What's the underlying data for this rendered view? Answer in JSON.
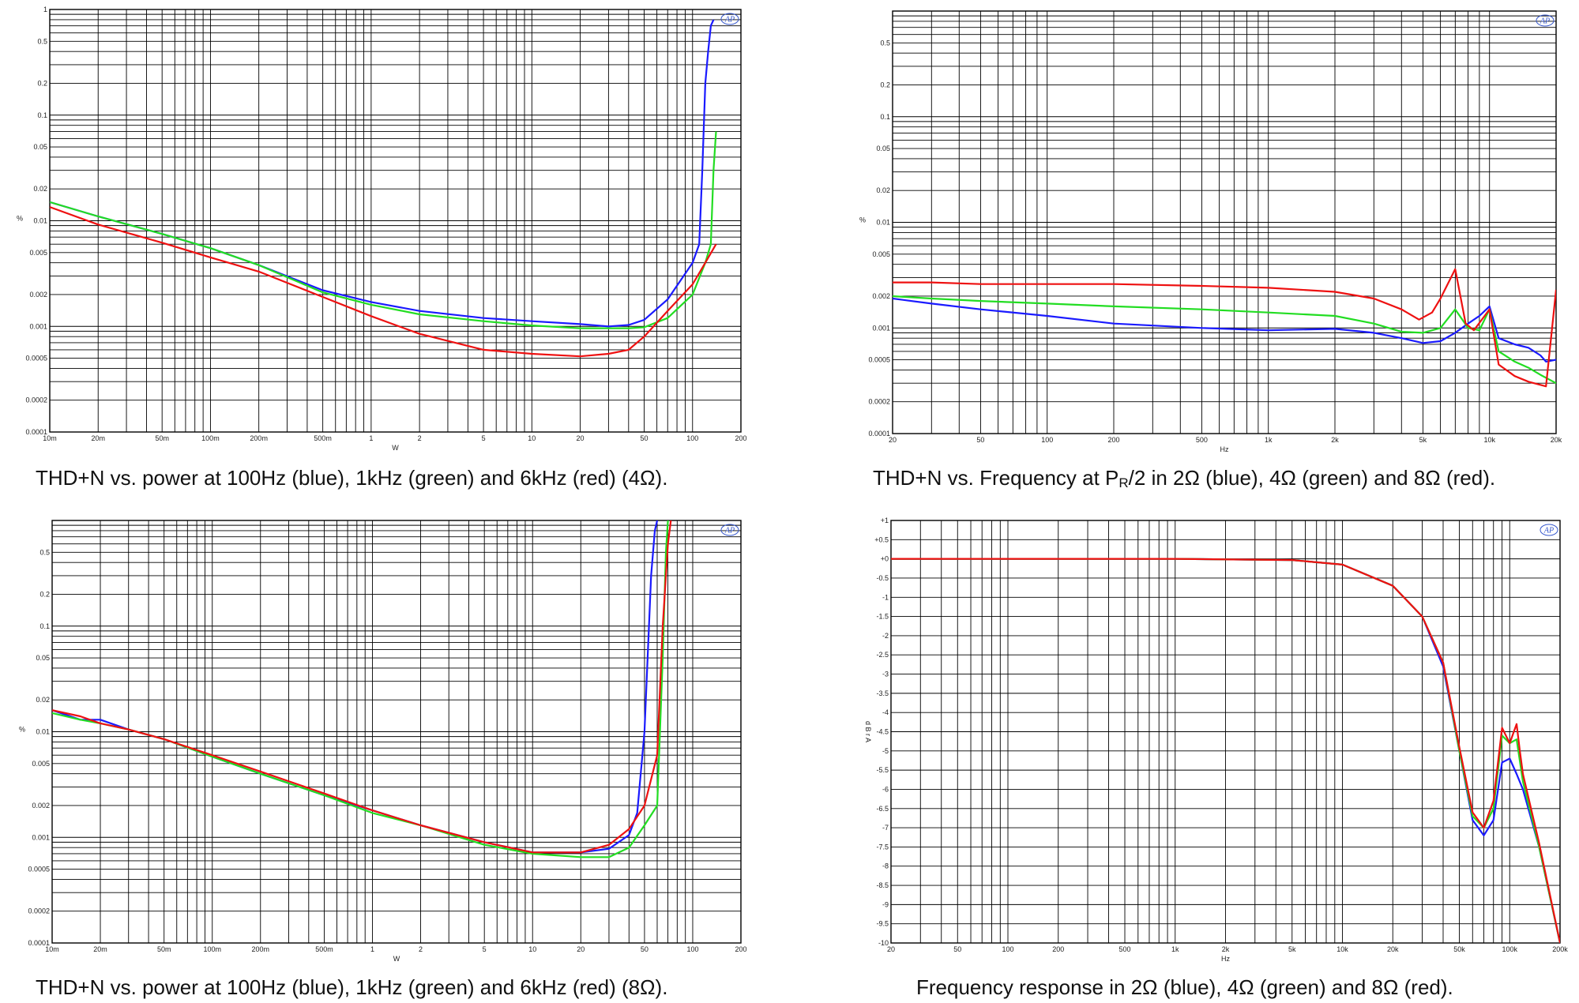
{
  "chart_data": [
    {
      "id": "p1",
      "type": "line",
      "scale": "loglog",
      "caption": "THD+N vs. power at 100Hz (blue), 1kHz (green) and 6kHz (red) (4Ω).",
      "xlabel": "W",
      "ylabel": "%",
      "xlim": [
        0.01,
        200
      ],
      "ylim": [
        0.0001,
        1
      ],
      "xticks": [
        [
          0.01,
          "10m"
        ],
        [
          0.02,
          "20m"
        ],
        [
          0.05,
          "50m"
        ],
        [
          0.1,
          "100m"
        ],
        [
          0.2,
          "200m"
        ],
        [
          0.5,
          "500m"
        ],
        [
          1,
          "1"
        ],
        [
          2,
          "2"
        ],
        [
          5,
          "5"
        ],
        [
          10,
          "10"
        ],
        [
          20,
          "20"
        ],
        [
          50,
          "50"
        ],
        [
          100,
          "100"
        ],
        [
          200,
          "200"
        ]
      ],
      "yticks": [
        [
          1,
          "1"
        ],
        [
          0.5,
          "0.5"
        ],
        [
          0.2,
          "0.2"
        ],
        [
          0.1,
          "0.1"
        ],
        [
          0.05,
          "0.05"
        ],
        [
          0.02,
          "0.02"
        ],
        [
          0.01,
          "0.01"
        ],
        [
          0.005,
          "0.005"
        ],
        [
          0.002,
          "0.002"
        ],
        [
          0.001,
          "0.001"
        ],
        [
          0.0005,
          "0.0005"
        ],
        [
          0.0002,
          "0.0002"
        ],
        [
          0.0001,
          "0.0001"
        ]
      ],
      "series": [
        {
          "color": "#1a1aff",
          "x": [
            0.01,
            0.02,
            0.05,
            0.1,
            0.2,
            0.5,
            1,
            2,
            5,
            10,
            20,
            30,
            40,
            50,
            70,
            100,
            110,
            115,
            120,
            125,
            130,
            135
          ],
          "y": [
            0.015,
            0.011,
            0.0075,
            0.0055,
            0.0038,
            0.0022,
            0.0017,
            0.0014,
            0.0012,
            0.00112,
            0.00105,
            0.001,
            0.00103,
            0.00115,
            0.0018,
            0.004,
            0.006,
            0.03,
            0.2,
            0.4,
            0.7,
            0.8
          ]
        },
        {
          "color": "#22dd22",
          "x": [
            0.01,
            0.02,
            0.05,
            0.1,
            0.2,
            0.5,
            1,
            2,
            5,
            10,
            20,
            30,
            40,
            50,
            70,
            100,
            120,
            130,
            135,
            140
          ],
          "y": [
            0.015,
            0.011,
            0.0075,
            0.0055,
            0.0038,
            0.0021,
            0.0016,
            0.0013,
            0.00112,
            0.00102,
            0.00096,
            0.00096,
            0.00096,
            0.00098,
            0.0012,
            0.002,
            0.004,
            0.006,
            0.03,
            0.07
          ]
        },
        {
          "color": "#ee1111",
          "x": [
            0.01,
            0.02,
            0.05,
            0.1,
            0.2,
            0.5,
            1,
            2,
            5,
            10,
            20,
            30,
            40,
            50,
            70,
            100,
            120,
            140
          ],
          "y": [
            0.0135,
            0.0092,
            0.0062,
            0.0045,
            0.0033,
            0.0019,
            0.00125,
            0.00085,
            0.0006,
            0.00055,
            0.00052,
            0.00055,
            0.0006,
            0.0008,
            0.0014,
            0.0025,
            0.004,
            0.006
          ]
        }
      ]
    },
    {
      "id": "p2",
      "type": "line",
      "scale": "loglog",
      "caption_main": "THD+N vs. Frequency at P",
      "caption_sub": "R",
      "caption_tail": "/2 in 2Ω (blue), 4Ω (green) and 8Ω (red).",
      "xlabel": "Hz",
      "ylabel": "%",
      "xlim": [
        20,
        20000
      ],
      "ylim": [
        0.0001,
        1
      ],
      "xticks": [
        [
          20,
          "20"
        ],
        [
          50,
          "50"
        ],
        [
          100,
          "100"
        ],
        [
          200,
          "200"
        ],
        [
          500,
          "500"
        ],
        [
          1000,
          "1k"
        ],
        [
          2000,
          "2k"
        ],
        [
          5000,
          "5k"
        ],
        [
          10000,
          "10k"
        ],
        [
          20000,
          "20k"
        ]
      ],
      "yticks": [
        [
          0.5,
          "0.5"
        ],
        [
          0.2,
          "0.2"
        ],
        [
          0.1,
          "0.1"
        ],
        [
          0.05,
          "0.05"
        ],
        [
          0.02,
          "0.02"
        ],
        [
          0.01,
          "0.01"
        ],
        [
          0.005,
          "0.005"
        ],
        [
          0.002,
          "0.002"
        ],
        [
          0.001,
          "0.001"
        ],
        [
          0.0005,
          "0.0005"
        ],
        [
          0.0002,
          "0.0002"
        ],
        [
          0.0001,
          "0.0001"
        ]
      ],
      "series": [
        {
          "color": "#1a1aff",
          "x": [
            20,
            30,
            50,
            100,
            200,
            500,
            1000,
            2000,
            3000,
            4000,
            5000,
            6000,
            7000,
            8000,
            9000,
            10000,
            11000,
            13000,
            15000,
            17000,
            18000,
            20000
          ],
          "y": [
            0.0019,
            0.0017,
            0.0015,
            0.0013,
            0.0011,
            0.001,
            0.00095,
            0.00098,
            0.0009,
            0.0008,
            0.00072,
            0.00075,
            0.0009,
            0.0011,
            0.0013,
            0.0016,
            0.0008,
            0.0007,
            0.00065,
            0.00055,
            0.00048,
            0.0005
          ]
        },
        {
          "color": "#22dd22",
          "x": [
            20,
            30,
            50,
            100,
            200,
            500,
            1000,
            2000,
            3000,
            4000,
            5000,
            6000,
            7000,
            8000,
            9000,
            10000,
            11000,
            13000,
            15000,
            17000,
            20000
          ],
          "y": [
            0.002,
            0.0019,
            0.0018,
            0.0017,
            0.0016,
            0.0015,
            0.0014,
            0.0013,
            0.0011,
            0.00092,
            0.0009,
            0.001,
            0.0015,
            0.001,
            0.00095,
            0.0015,
            0.0006,
            0.00048,
            0.00042,
            0.00036,
            0.0003
          ]
        },
        {
          "color": "#ee1111",
          "x": [
            20,
            30,
            50,
            100,
            200,
            500,
            1000,
            2000,
            3000,
            4000,
            4800,
            5500,
            6000,
            7000,
            7800,
            8500,
            9500,
            10000,
            11000,
            13000,
            15000,
            18000,
            20000
          ],
          "y": [
            0.0027,
            0.0027,
            0.0026,
            0.0026,
            0.0026,
            0.0025,
            0.0024,
            0.0022,
            0.0019,
            0.0015,
            0.0012,
            0.0014,
            0.0019,
            0.0036,
            0.0011,
            0.00095,
            0.0013,
            0.0015,
            0.00045,
            0.00035,
            0.00031,
            0.00028,
            0.0023
          ]
        }
      ]
    },
    {
      "id": "p3",
      "type": "line",
      "scale": "loglog",
      "caption": "THD+N vs. power at 100Hz (blue), 1kHz (green) and 6kHz (red) (8Ω).",
      "xlabel": "W",
      "ylabel": "%",
      "xlim": [
        0.01,
        200
      ],
      "ylim": [
        0.0001,
        1
      ],
      "xticks": [
        [
          0.01,
          "10m"
        ],
        [
          0.02,
          "20m"
        ],
        [
          0.05,
          "50m"
        ],
        [
          0.1,
          "100m"
        ],
        [
          0.2,
          "200m"
        ],
        [
          0.5,
          "500m"
        ],
        [
          1,
          "1"
        ],
        [
          2,
          "2"
        ],
        [
          5,
          "5"
        ],
        [
          10,
          "10"
        ],
        [
          20,
          "20"
        ],
        [
          50,
          "50"
        ],
        [
          100,
          "100"
        ],
        [
          200,
          "200"
        ]
      ],
      "yticks": [
        [
          0.5,
          "0.5"
        ],
        [
          0.2,
          "0.2"
        ],
        [
          0.1,
          "0.1"
        ],
        [
          0.05,
          "0.05"
        ],
        [
          0.02,
          "0.02"
        ],
        [
          0.01,
          "0.01"
        ],
        [
          0.005,
          "0.005"
        ],
        [
          0.002,
          "0.002"
        ],
        [
          0.001,
          "0.001"
        ],
        [
          0.0005,
          "0.0005"
        ],
        [
          0.0002,
          "0.0002"
        ],
        [
          0.0001,
          "0.0001"
        ]
      ],
      "series": [
        {
          "color": "#1a1aff",
          "x": [
            0.01,
            0.015,
            0.02,
            0.03,
            0.05,
            0.1,
            0.2,
            0.5,
            1,
            2,
            5,
            10,
            20,
            30,
            40,
            45,
            50,
            55,
            58,
            60
          ],
          "y": [
            0.016,
            0.013,
            0.013,
            0.0105,
            0.0085,
            0.0058,
            0.004,
            0.0025,
            0.0018,
            0.0013,
            0.0009,
            0.00072,
            0.00072,
            0.00078,
            0.00105,
            0.0017,
            0.01,
            0.3,
            0.8,
            1.0
          ]
        },
        {
          "color": "#22dd22",
          "x": [
            0.01,
            0.015,
            0.02,
            0.03,
            0.05,
            0.1,
            0.2,
            0.5,
            1,
            2,
            5,
            10,
            20,
            30,
            40,
            50,
            60,
            65,
            68,
            70
          ],
          "y": [
            0.015,
            0.013,
            0.012,
            0.0105,
            0.0085,
            0.0058,
            0.004,
            0.0025,
            0.0017,
            0.0013,
            0.00085,
            0.0007,
            0.00065,
            0.00065,
            0.0008,
            0.0013,
            0.002,
            0.05,
            0.5,
            1.0
          ]
        },
        {
          "color": "#ee1111",
          "x": [
            0.01,
            0.015,
            0.02,
            0.03,
            0.05,
            0.1,
            0.2,
            0.5,
            1,
            2,
            5,
            10,
            20,
            30,
            40,
            50,
            60,
            65,
            70,
            73
          ],
          "y": [
            0.016,
            0.014,
            0.012,
            0.0105,
            0.0085,
            0.006,
            0.0042,
            0.0026,
            0.0018,
            0.0013,
            0.0009,
            0.00072,
            0.00072,
            0.00085,
            0.0012,
            0.002,
            0.006,
            0.1,
            0.6,
            1.0
          ]
        }
      ]
    },
    {
      "id": "p4",
      "type": "line",
      "scale": "logx",
      "caption": "Frequency response in 2Ω (blue), 4Ω (green) and 8Ω (red).",
      "xlabel": "Hz",
      "ylabel": "d B r A",
      "xlim": [
        20,
        200000
      ],
      "ylim": [
        -10,
        1
      ],
      "xticks": [
        [
          20,
          "20"
        ],
        [
          50,
          "50"
        ],
        [
          100,
          "100"
        ],
        [
          200,
          "200"
        ],
        [
          500,
          "500"
        ],
        [
          1000,
          "1k"
        ],
        [
          2000,
          "2k"
        ],
        [
          5000,
          "5k"
        ],
        [
          10000,
          "10k"
        ],
        [
          20000,
          "20k"
        ],
        [
          50000,
          "50k"
        ],
        [
          100000,
          "100k"
        ],
        [
          200000,
          "200k"
        ]
      ],
      "yticks": [
        [
          1,
          "+1"
        ],
        [
          0.5,
          "+0.5"
        ],
        [
          0,
          "+0"
        ],
        [
          -0.5,
          "-0.5"
        ],
        [
          -1,
          "-1"
        ],
        [
          -1.5,
          "-1.5"
        ],
        [
          -2,
          "-2"
        ],
        [
          -2.5,
          "-2.5"
        ],
        [
          -3,
          "-3"
        ],
        [
          -3.5,
          "-3.5"
        ],
        [
          -4,
          "-4"
        ],
        [
          -4.5,
          "-4.5"
        ],
        [
          -5,
          "-5"
        ],
        [
          -5.5,
          "-5.5"
        ],
        [
          -6,
          "-6"
        ],
        [
          -6.5,
          "-6.5"
        ],
        [
          -7,
          "-7"
        ],
        [
          -7.5,
          "-7.5"
        ],
        [
          -8,
          "-8"
        ],
        [
          -8.5,
          "-8.5"
        ],
        [
          -9,
          "-9"
        ],
        [
          -9.5,
          "-9.5"
        ],
        [
          -10,
          "-10"
        ]
      ],
      "series": [
        {
          "color": "#1a1aff",
          "x": [
            20,
            1000,
            5000,
            10000,
            20000,
            30000,
            40000,
            50000,
            60000,
            70000,
            80000,
            90000,
            100000,
            110000,
            120000,
            150000,
            200000
          ],
          "y": [
            0,
            0,
            -0.03,
            -0.15,
            -0.7,
            -1.5,
            -2.8,
            -5.0,
            -6.8,
            -7.2,
            -6.8,
            -5.3,
            -5.2,
            -5.6,
            -6.0,
            -7.5,
            -10
          ]
        },
        {
          "color": "#22dd22",
          "x": [
            20,
            1000,
            5000,
            10000,
            20000,
            30000,
            40000,
            50000,
            60000,
            70000,
            80000,
            90000,
            100000,
            110000,
            120000,
            150000,
            200000
          ],
          "y": [
            0,
            0,
            -0.03,
            -0.15,
            -0.7,
            -1.5,
            -2.7,
            -5.0,
            -6.7,
            -7.0,
            -6.5,
            -4.6,
            -4.8,
            -4.7,
            -5.8,
            -7.5,
            -10
          ]
        },
        {
          "color": "#ee1111",
          "x": [
            20,
            1000,
            5000,
            10000,
            20000,
            30000,
            40000,
            50000,
            60000,
            70000,
            80000,
            90000,
            100000,
            110000,
            115000,
            120000,
            150000,
            200000
          ],
          "y": [
            0,
            0,
            -0.03,
            -0.15,
            -0.7,
            -1.5,
            -2.7,
            -4.9,
            -6.6,
            -7.0,
            -6.3,
            -4.4,
            -4.8,
            -4.3,
            -5.0,
            -5.6,
            -7.4,
            -10
          ]
        }
      ]
    }
  ]
}
